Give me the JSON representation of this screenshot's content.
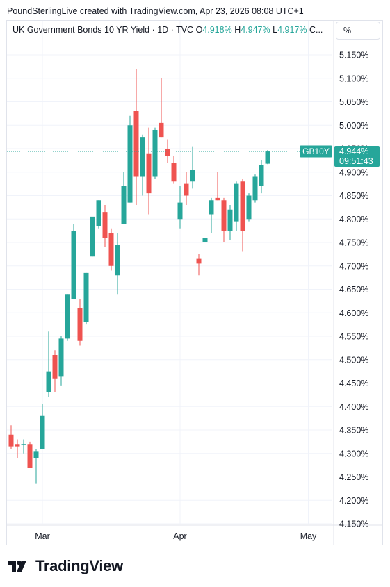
{
  "header": {
    "credit": "PoundSterlingLive created with TradingView.com, Apr 23, 2026 08:08 UTC+1"
  },
  "legend": {
    "symbol": "UK Government Bonds 10 YR Yield · 1D · TVC",
    "o_label": "O",
    "o_value": "4.918%",
    "h_label": "H",
    "h_value": "4.947%",
    "l_label": "L",
    "l_value": "4.917%",
    "c_label": "C..."
  },
  "scale_mode": "%",
  "price_tag": {
    "label": "GB10Y",
    "value": "4.944%",
    "countdown": "09:51:43"
  },
  "footer": {
    "brand": "TradingView"
  },
  "colors": {
    "up": "#26a69a",
    "down": "#ef5350",
    "grid": "#f0f3fa"
  },
  "chart_data": {
    "type": "candlestick",
    "ylim": [
      4.14,
      5.2
    ],
    "y_ticks": [
      "5.150%",
      "5.100%",
      "5.050%",
      "5.000%",
      "4.950%",
      "4.900%",
      "4.850%",
      "4.800%",
      "4.750%",
      "4.700%",
      "4.650%",
      "4.600%",
      "4.550%",
      "4.500%",
      "4.450%",
      "4.400%",
      "4.350%",
      "4.300%",
      "4.250%",
      "4.200%",
      "4.150%"
    ],
    "y_tick_values": [
      5.15,
      5.1,
      5.05,
      5.0,
      4.95,
      4.9,
      4.85,
      4.8,
      4.75,
      4.7,
      4.65,
      4.6,
      4.55,
      4.5,
      4.45,
      4.4,
      4.35,
      4.3,
      4.25,
      4.2,
      4.15
    ],
    "x_ticks": [
      {
        "label": "Mar",
        "index": 5
      },
      {
        "label": "Apr",
        "index": 27
      },
      {
        "label": "May",
        "index": 47.5
      }
    ],
    "last_value": 4.944,
    "candles": [
      {
        "o": 4.34,
        "h": 4.36,
        "l": 4.31,
        "c": 4.315
      },
      {
        "o": 4.32,
        "h": 4.33,
        "l": 4.29,
        "c": 4.315
      },
      {
        "o": 4.32,
        "h": 4.33,
        "l": 4.3,
        "c": 4.32
      },
      {
        "o": 4.32,
        "h": 4.325,
        "l": 4.27,
        "c": 4.27
      },
      {
        "o": 4.29,
        "h": 4.31,
        "l": 4.235,
        "c": 4.305
      },
      {
        "o": 4.31,
        "h": 4.405,
        "l": 4.31,
        "c": 4.38
      },
      {
        "o": 4.43,
        "h": 4.56,
        "l": 4.42,
        "c": 4.475
      },
      {
        "o": 4.51,
        "h": 4.52,
        "l": 4.43,
        "c": 4.46
      },
      {
        "o": 4.465,
        "h": 4.55,
        "l": 4.445,
        "c": 4.545
      },
      {
        "o": 4.545,
        "h": 4.64,
        "l": 4.54,
        "c": 4.64
      },
      {
        "o": 4.63,
        "h": 4.79,
        "l": 4.63,
        "c": 4.775
      },
      {
        "o": 4.61,
        "h": 4.63,
        "l": 4.53,
        "c": 4.54
      },
      {
        "o": 4.58,
        "h": 4.685,
        "l": 4.575,
        "c": 4.685
      },
      {
        "o": 4.72,
        "h": 4.8,
        "l": 4.72,
        "c": 4.805
      },
      {
        "o": 4.785,
        "h": 4.84,
        "l": 4.78,
        "c": 4.84
      },
      {
        "o": 4.815,
        "h": 4.83,
        "l": 4.74,
        "c": 4.76
      },
      {
        "o": 4.77,
        "h": 4.78,
        "l": 4.69,
        "c": 4.7
      },
      {
        "o": 4.68,
        "h": 4.77,
        "l": 4.64,
        "c": 4.745
      },
      {
        "o": 4.79,
        "h": 4.9,
        "l": 4.79,
        "c": 4.87
      },
      {
        "o": 4.835,
        "h": 5.02,
        "l": 4.835,
        "c": 5.0
      },
      {
        "o": 5.03,
        "h": 5.12,
        "l": 4.83,
        "c": 4.89
      },
      {
        "o": 4.89,
        "h": 4.98,
        "l": 4.85,
        "c": 4.975
      },
      {
        "o": 4.94,
        "h": 4.995,
        "l": 4.81,
        "c": 4.855
      },
      {
        "o": 4.89,
        "h": 4.995,
        "l": 4.885,
        "c": 4.99
      },
      {
        "o": 5.005,
        "h": 5.1,
        "l": 4.975,
        "c": 4.975
      },
      {
        "o": 4.95,
        "h": 4.97,
        "l": 4.92,
        "c": 4.935
      },
      {
        "o": 4.92,
        "h": 4.935,
        "l": 4.875,
        "c": 4.88
      },
      {
        "o": 4.8,
        "h": 4.87,
        "l": 4.78,
        "c": 4.835
      },
      {
        "o": 4.875,
        "h": 4.9,
        "l": 4.83,
        "c": 4.85
      },
      {
        "o": 4.88,
        "h": 4.955,
        "l": 4.865,
        "c": 4.905
      },
      {
        "o": 4.715,
        "h": 4.725,
        "l": 4.68,
        "c": 4.705
      },
      {
        "o": 4.75,
        "h": 4.76,
        "l": 4.75,
        "c": 4.76
      },
      {
        "o": 4.81,
        "h": 4.845,
        "l": 4.77,
        "c": 4.84
      },
      {
        "o": 4.845,
        "h": 4.9,
        "l": 4.84,
        "c": 4.84
      },
      {
        "o": 4.84,
        "h": 4.845,
        "l": 4.75,
        "c": 4.775
      },
      {
        "o": 4.775,
        "h": 4.83,
        "l": 4.755,
        "c": 4.82
      },
      {
        "o": 4.795,
        "h": 4.88,
        "l": 4.775,
        "c": 4.875
      },
      {
        "o": 4.88,
        "h": 4.885,
        "l": 4.73,
        "c": 4.775
      },
      {
        "o": 4.8,
        "h": 4.855,
        "l": 4.795,
        "c": 4.85
      },
      {
        "o": 4.84,
        "h": 4.895,
        "l": 4.835,
        "c": 4.89
      },
      {
        "o": 4.87,
        "h": 4.925,
        "l": 4.855,
        "c": 4.915
      },
      {
        "o": 4.918,
        "h": 4.947,
        "l": 4.917,
        "c": 4.944
      }
    ]
  }
}
